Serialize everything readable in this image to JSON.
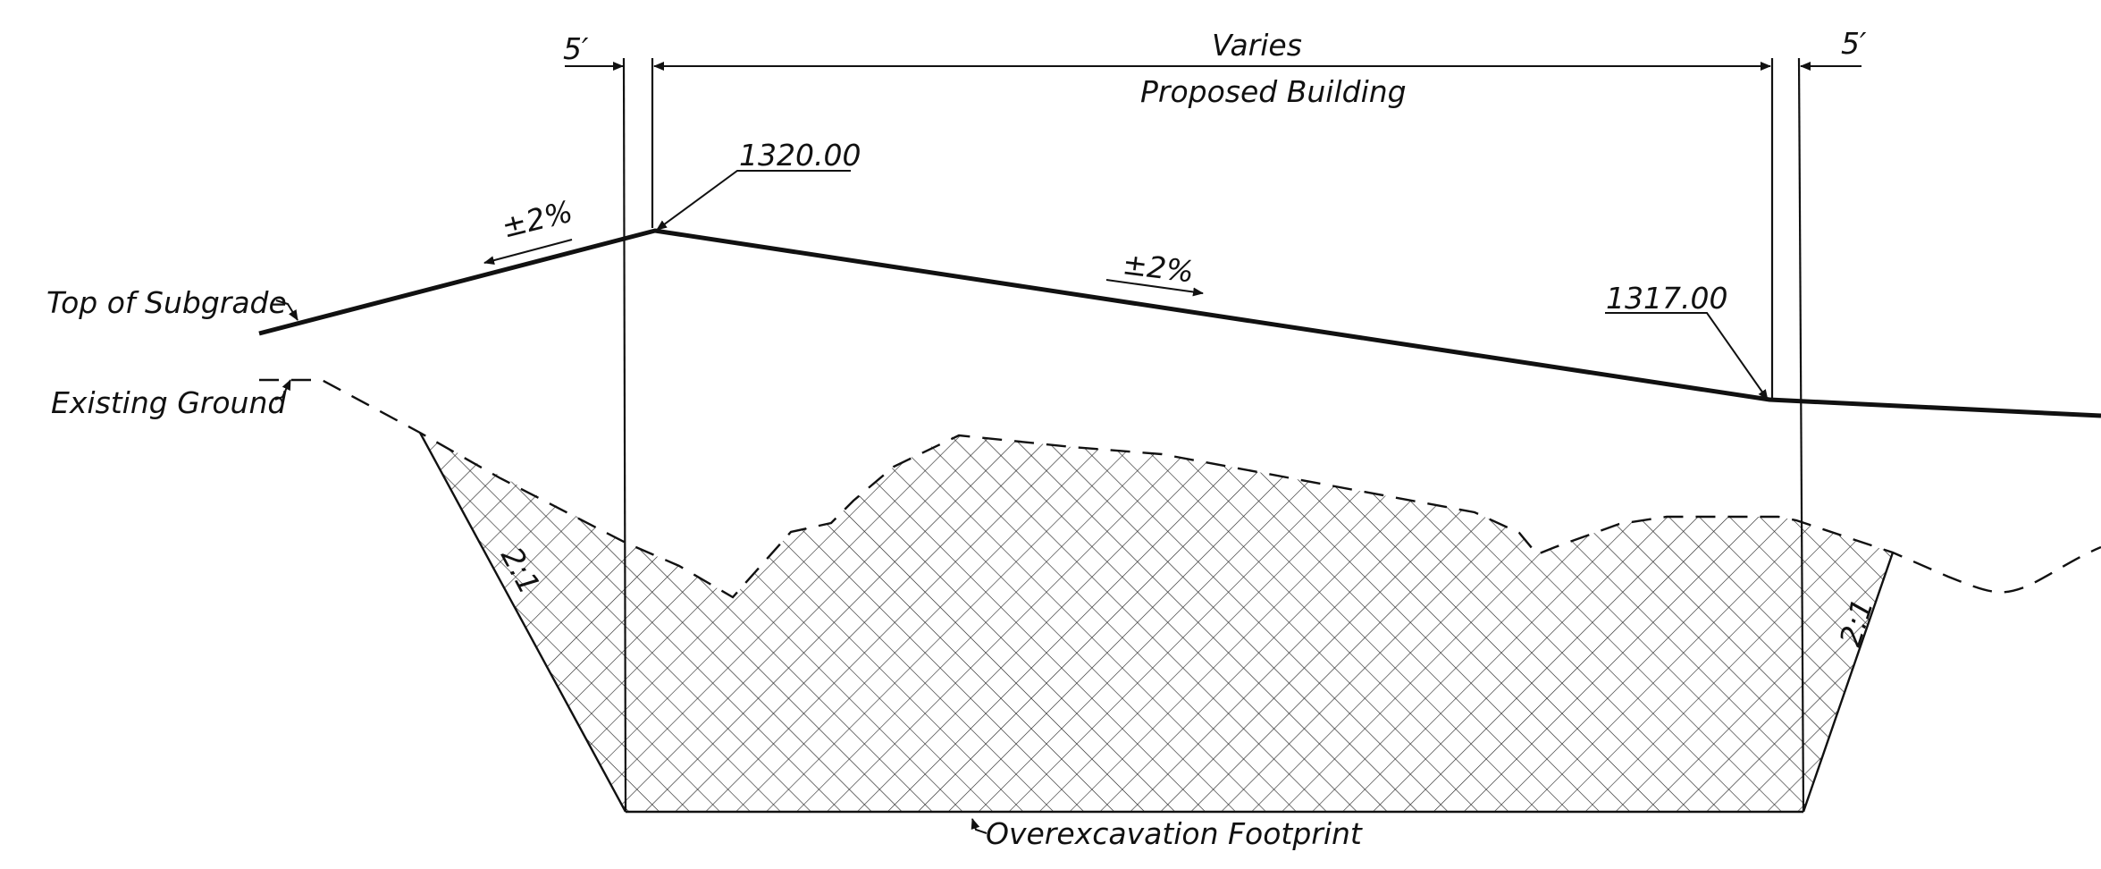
{
  "labels": {
    "left_offset": "5′",
    "right_offset": "5′",
    "width_dim": "Varies",
    "building": "Proposed Building",
    "high_elev": "1320.00",
    "low_elev": "1317.00",
    "slope_left": "±2%",
    "slope_right": "±2%",
    "top_of_subgrade": "Top of Subgrade",
    "existing_ground": "Existing Ground",
    "side_slope_left": "2:1",
    "side_slope_right": "2:1",
    "footprint": "Overexcavation Footprint"
  },
  "colors": {
    "line": "#111111",
    "hatch": "#222222"
  }
}
